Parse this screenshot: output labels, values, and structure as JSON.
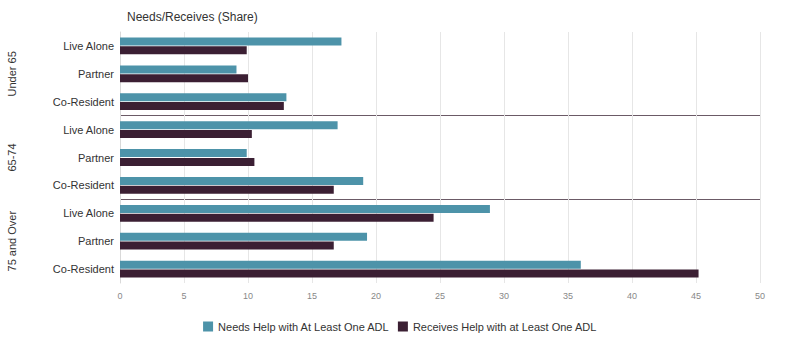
{
  "chart_data": {
    "type": "bar",
    "orientation": "horizontal",
    "title": "Needs/Receives (Share)",
    "groups": [
      {
        "name": "Under 65",
        "categories": [
          "Live Alone",
          "Partner",
          "Co-Resident"
        ]
      },
      {
        "name": "65-74",
        "categories": [
          "Live Alone",
          "Partner",
          "Co-Resident"
        ]
      },
      {
        "name": "75 and Over",
        "categories": [
          "Live Alone",
          "Partner",
          "Co-Resident"
        ]
      }
    ],
    "series": [
      {
        "name": "Needs Help with At Least One ADL",
        "color": "#4d93a9",
        "values": [
          17.3,
          9.1,
          13.0,
          17.0,
          9.9,
          19.0,
          28.9,
          19.3,
          36.0
        ]
      },
      {
        "name": "Receives Help with at Least One ADL",
        "color": "#3b1f33",
        "values": [
          9.9,
          10.0,
          12.8,
          10.3,
          10.5,
          16.7,
          24.5,
          16.7,
          45.2
        ]
      }
    ],
    "xlim": [
      0,
      50
    ],
    "xticks": [
      0,
      5,
      10,
      15,
      20,
      25,
      30,
      35,
      40,
      45,
      50
    ],
    "grid": true,
    "legend": "bottom"
  }
}
